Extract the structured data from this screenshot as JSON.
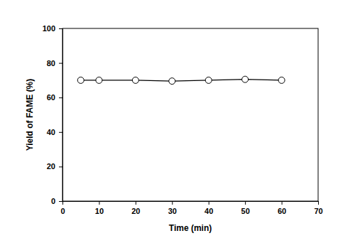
{
  "chart_data": {
    "type": "line",
    "x_label": "Time (min)",
    "y_label": "Yield of FAME (%)",
    "x": [
      5,
      10,
      20,
      30,
      40,
      50,
      60
    ],
    "values": [
      70,
      70,
      70,
      69.5,
      70,
      70.5,
      70
    ],
    "color": "#000000",
    "marker": "circle",
    "line_style": "solid",
    "xlim": [
      0,
      70
    ],
    "xticks": [
      0,
      10,
      20,
      30,
      40,
      50,
      60,
      70
    ],
    "ylim": [
      0,
      100
    ],
    "yticks": [
      0,
      20,
      40,
      60,
      80,
      100
    ],
    "grid": false
  }
}
